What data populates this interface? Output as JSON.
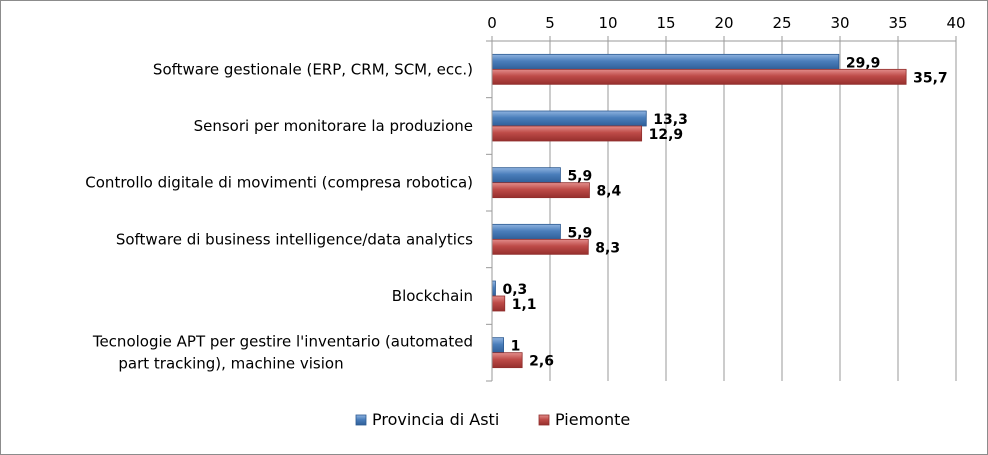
{
  "chart_data": {
    "type": "bar",
    "orientation": "horizontal",
    "categories": [
      [
        "Software gestionale (ERP, CRM, SCM, ecc.)"
      ],
      [
        "Sensori per monitorare la produzione"
      ],
      [
        "Controllo digitale di movimenti (compresa robotica)"
      ],
      [
        "Software di business intelligence/data analytics"
      ],
      [
        "Blockchain"
      ],
      [
        "Tecnologie APT per gestire l'inventario (automated",
        "part tracking), machine vision"
      ]
    ],
    "series": [
      {
        "name": "Provincia di Asti",
        "color": "#4a7ebb",
        "values": [
          29.9,
          13.3,
          5.9,
          5.9,
          0.3,
          1
        ],
        "labels": [
          "29,9",
          "13,3",
          "5,9",
          "5,9",
          "0,3",
          "1"
        ]
      },
      {
        "name": "Piemonte",
        "color": "#be4b48",
        "values": [
          35.7,
          12.9,
          8.4,
          8.3,
          1.1,
          2.6
        ],
        "labels": [
          "35,7",
          "12,9",
          "8,4",
          "8,3",
          "1,1",
          "2,6"
        ]
      }
    ],
    "xlim": [
      0,
      40
    ],
    "xticks": [
      0,
      5,
      10,
      15,
      20,
      25,
      30,
      35,
      40
    ],
    "x_axis_position": "top",
    "grid": true,
    "legend": "bottom"
  }
}
